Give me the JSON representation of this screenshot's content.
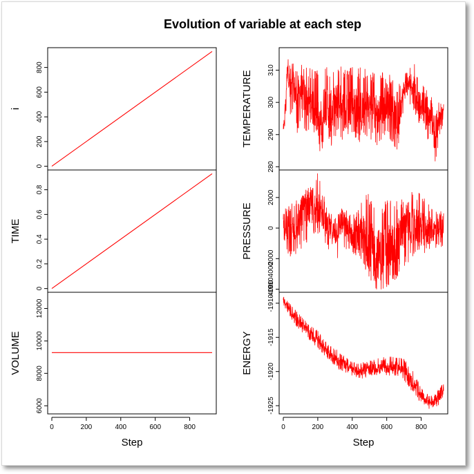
{
  "figure": {
    "title": "Evolution of variable at each step",
    "background": "#ffffff",
    "line_color": "#ff0000"
  },
  "chart_data": [
    {
      "id": "i",
      "type": "line",
      "ylabel": "i",
      "xlabel": "Step",
      "xlim": [
        0,
        930
      ],
      "ylim": [
        -30,
        960
      ],
      "x_ticks": [
        0,
        200,
        400,
        600,
        800
      ],
      "y_ticks": [
        0,
        200,
        400,
        600,
        800
      ],
      "series": [
        {
          "x": [
            0,
            930
          ],
          "y": [
            0,
            930
          ]
        }
      ]
    },
    {
      "id": "time",
      "type": "line",
      "ylabel": "TIME",
      "xlabel": "Step",
      "xlim": [
        0,
        930
      ],
      "ylim": [
        -0.03,
        0.96
      ],
      "x_ticks": [
        0,
        200,
        400,
        600,
        800
      ],
      "y_ticks": [
        0.0,
        0.2,
        0.4,
        0.6,
        0.8
      ],
      "series": [
        {
          "x": [
            0,
            930
          ],
          "y": [
            0,
            0.93
          ]
        }
      ]
    },
    {
      "id": "volume",
      "type": "line",
      "ylabel": "VOLUME",
      "xlabel": "Step",
      "xlim": [
        0,
        930
      ],
      "ylim": [
        5500,
        13000
      ],
      "x_ticks": [
        0,
        200,
        400,
        600,
        800
      ],
      "y_ticks": [
        6000,
        8000,
        10000,
        12000
      ],
      "series": [
        {
          "x": [
            0,
            930
          ],
          "y": [
            9280,
            9280
          ]
        }
      ]
    },
    {
      "id": "temperature",
      "type": "line",
      "ylabel": "TEMPERATURE",
      "xlabel": "Step",
      "xlim": [
        0,
        930
      ],
      "ylim": [
        279,
        317
      ],
      "x_ticks": [
        0,
        200,
        400,
        600,
        800
      ],
      "y_ticks": [
        280,
        290,
        300,
        310
      ],
      "series": [
        {
          "x": [
            0,
            10,
            25,
            40,
            60,
            80,
            100,
            130,
            160,
            200,
            210,
            240,
            280,
            320,
            360,
            400,
            450,
            500,
            550,
            600,
            640,
            660,
            700,
            740,
            760,
            790,
            820,
            840,
            860,
            880,
            900,
            920,
            930
          ],
          "y": [
            292,
            296,
            312,
            303,
            305,
            300,
            304,
            301,
            299,
            296,
            292,
            300,
            297,
            301,
            296,
            300,
            297,
            299,
            296,
            301,
            297,
            293,
            304,
            306,
            305,
            299,
            300,
            295,
            298,
            287,
            293,
            297,
            296
          ]
        }
      ],
      "band": {
        "x": [
          0,
          10,
          25,
          40,
          60,
          80,
          100,
          130,
          160,
          200,
          210,
          240,
          280,
          320,
          360,
          400,
          450,
          500,
          550,
          600,
          640,
          660,
          700,
          740,
          760,
          790,
          820,
          840,
          860,
          880,
          900,
          920,
          930
        ],
        "upper": [
          294,
          300,
          316,
          312,
          313,
          310,
          313,
          312,
          311,
          310,
          306,
          312,
          310,
          312,
          311,
          311,
          311,
          310,
          309,
          310,
          307,
          305,
          309,
          311,
          312,
          308,
          306,
          302,
          302,
          296,
          300,
          301,
          300
        ],
        "lower": [
          291,
          292,
          304,
          295,
          296,
          290,
          293,
          291,
          291,
          290,
          283,
          288,
          286,
          290,
          287,
          290,
          287,
          289,
          286,
          290,
          287,
          284,
          297,
          299,
          297,
          293,
          293,
          287,
          289,
          280,
          287,
          292,
          292
        ]
      }
    },
    {
      "id": "pressure",
      "type": "line",
      "ylabel": "PRESSURE",
      "xlabel": "Step",
      "xlim": [
        0,
        930
      ],
      "ylim": [
        -4200,
        3800
      ],
      "x_ticks": [
        0,
        200,
        400,
        600,
        800
      ],
      "y_ticks": [
        -4000,
        -2000,
        0,
        2000
      ],
      "series": [
        {
          "x": [
            0,
            40,
            80,
            120,
            160,
            200,
            230,
            260,
            300,
            340,
            380,
            420,
            460,
            500,
            540,
            560,
            600,
            640,
            680,
            720,
            760,
            800,
            840,
            880,
            930
          ],
          "y": [
            0,
            -200,
            200,
            1000,
            1200,
            1400,
            800,
            0,
            -400,
            400,
            -200,
            -800,
            -400,
            -1200,
            -1500,
            -1800,
            -1400,
            -1200,
            -500,
            200,
            100,
            0,
            -200,
            -100,
            0
          ]
        }
      ],
      "band": {
        "x": [
          0,
          40,
          80,
          120,
          160,
          200,
          230,
          260,
          300,
          340,
          380,
          420,
          460,
          500,
          540,
          560,
          600,
          640,
          680,
          720,
          760,
          800,
          840,
          880,
          930
        ],
        "upper": [
          1200,
          1600,
          1900,
          2400,
          2800,
          3600,
          2400,
          1200,
          900,
          1400,
          1100,
          1000,
          2200,
          2300,
          1900,
          2100,
          1800,
          2000,
          2000,
          1800,
          2700,
          2400,
          1600,
          1200,
          1100
        ],
        "lower": [
          -1600,
          -2000,
          -1700,
          -1200,
          -900,
          -400,
          -600,
          -1500,
          -2200,
          -1700,
          -1700,
          -2000,
          -2600,
          -3600,
          -4100,
          -4200,
          -3900,
          -3700,
          -3000,
          -2400,
          -1800,
          -1400,
          -1900,
          -1400,
          -1200
        ]
      }
    },
    {
      "id": "energy",
      "type": "line",
      "ylabel": "ENERGY",
      "xlabel": "Step",
      "xlim": [
        0,
        930
      ],
      "ylim": [
        -1926.2,
        -1908.4
      ],
      "x_ticks": [
        0,
        200,
        400,
        600,
        800
      ],
      "y_ticks": [
        -1925,
        -1920,
        -1915,
        -1910
      ],
      "extra_y_tick_labels": [
        "-1910",
        "4000"
      ],
      "series": [
        {
          "x": [
            0,
            40,
            80,
            120,
            160,
            200,
            240,
            280,
            320,
            360,
            400,
            440,
            480,
            520,
            560,
            600,
            640,
            680,
            720,
            760,
            800,
            840,
            870,
            900,
            930
          ],
          "y": [
            -1909.5,
            -1911,
            -1912.5,
            -1913.5,
            -1914.5,
            -1915.3,
            -1916.5,
            -1917.5,
            -1918.5,
            -1919,
            -1919.8,
            -1920,
            -1919.8,
            -1919.5,
            -1919.6,
            -1919.5,
            -1919.3,
            -1919.5,
            -1920.5,
            -1922,
            -1923.5,
            -1924.5,
            -1924.5,
            -1924,
            -1922.7
          ]
        }
      ],
      "band": {
        "x": [
          0,
          40,
          80,
          120,
          160,
          200,
          240,
          280,
          320,
          360,
          400,
          440,
          480,
          520,
          560,
          600,
          640,
          680,
          720,
          760,
          800,
          840,
          870,
          900,
          930
        ],
        "upper": [
          -1908.8,
          -1910,
          -1911.3,
          -1912.3,
          -1913.3,
          -1914,
          -1915.3,
          -1916.2,
          -1917,
          -1917.8,
          -1918.6,
          -1918.7,
          -1918.6,
          -1918.2,
          -1918,
          -1917.8,
          -1917.6,
          -1917.7,
          -1918.5,
          -1920.2,
          -1922.4,
          -1923.4,
          -1923.5,
          -1922.6,
          -1921.6
        ],
        "lower": [
          -1910.3,
          -1912,
          -1913.6,
          -1914.6,
          -1915.6,
          -1916.6,
          -1917.7,
          -1918.7,
          -1919.7,
          -1920.2,
          -1920.8,
          -1921.2,
          -1920.8,
          -1920.6,
          -1920.6,
          -1920.6,
          -1920.6,
          -1920.7,
          -1922,
          -1923.5,
          -1924.6,
          -1925.6,
          -1925.4,
          -1925,
          -1923.5
        ]
      }
    }
  ]
}
